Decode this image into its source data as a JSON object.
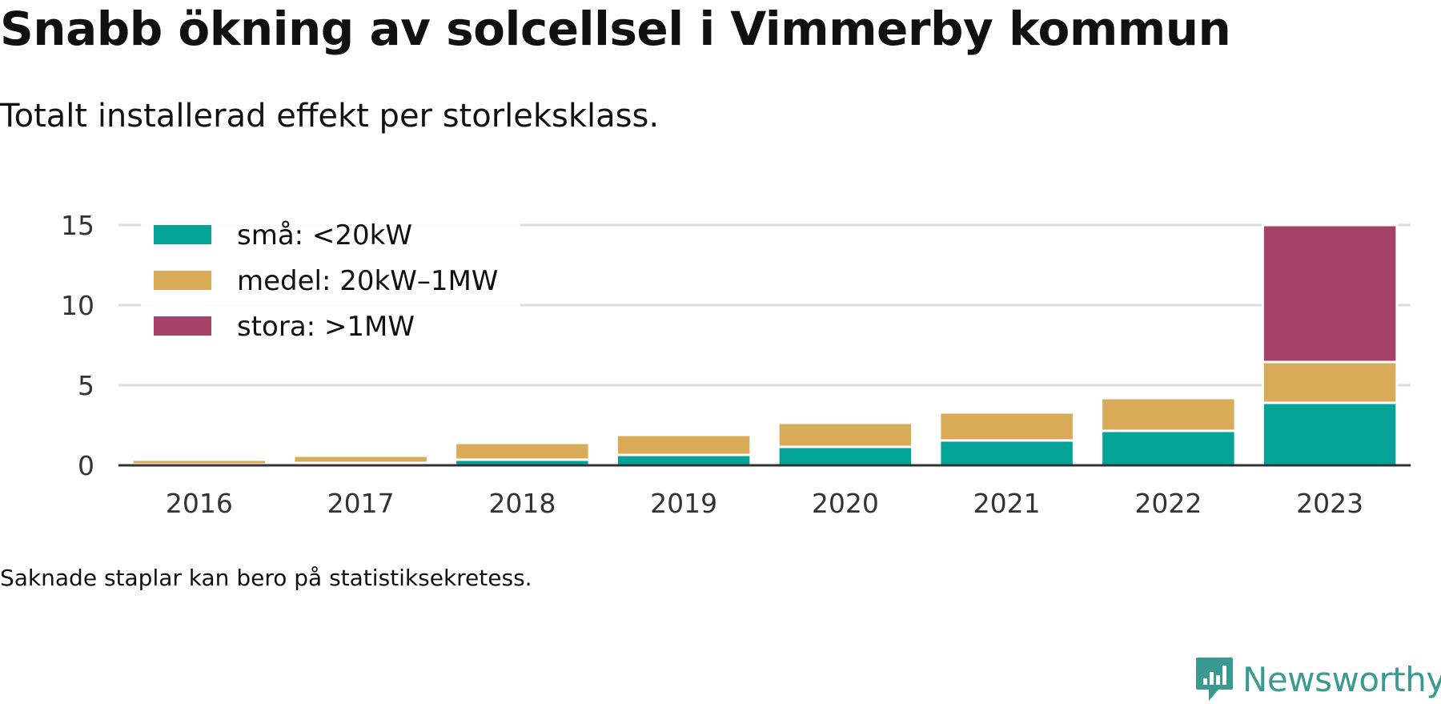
{
  "header": {
    "title": "Snabb ökning av solcellsel i Vimmerby kommun",
    "subtitle": "Totalt installerad effekt per storleksklass."
  },
  "note": "Saknade staplar kan bero på statistiksekretess.",
  "brand": {
    "name": "Newsworthy",
    "icon": "newsworthy-logo-icon",
    "color": "#3a9a92"
  },
  "chart_data": {
    "type": "bar",
    "stacked": true,
    "categories": [
      "2016",
      "2017",
      "2018",
      "2019",
      "2020",
      "2021",
      "2022",
      "2023"
    ],
    "series": [
      {
        "name": "små: <20kW",
        "color": "#03a398",
        "values": [
          0.05,
          0.15,
          0.35,
          0.65,
          1.15,
          1.55,
          2.15,
          3.9
        ]
      },
      {
        "name": "medel: 20kW–1MW",
        "color": "#d9ab58",
        "values": [
          0.3,
          0.45,
          1.05,
          1.25,
          1.5,
          1.75,
          2.05,
          2.55
        ]
      },
      {
        "name": "stora: >1MW",
        "color": "#a54168",
        "values": [
          0,
          0,
          0,
          0,
          0,
          0,
          0,
          8.55
        ]
      }
    ],
    "ylim": [
      0,
      15
    ],
    "yticks": [
      0,
      5,
      10,
      15
    ],
    "grid": true,
    "legend": "top-left"
  }
}
